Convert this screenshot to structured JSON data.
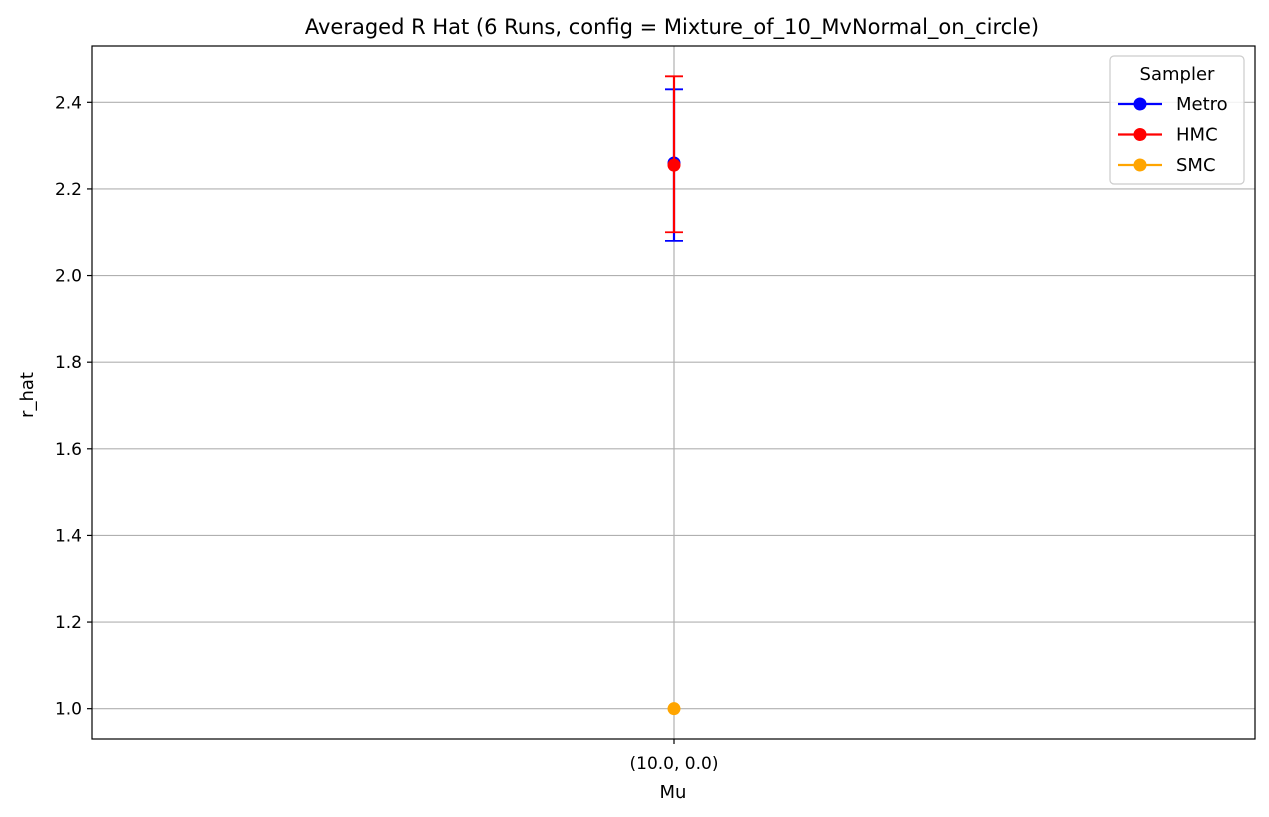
{
  "chart_data": {
    "type": "scatter",
    "title": "Averaged R Hat (6 Runs, config = Mixture_of_10_MvNormal_on_circle)",
    "xlabel": "Mu",
    "ylabel": "r_hat",
    "categories": [
      "(10.0, 0.0)"
    ],
    "ylim": [
      0.93,
      2.53
    ],
    "yticks": [
      1.0,
      1.2,
      1.4,
      1.6,
      1.8,
      2.0,
      2.2,
      2.4
    ],
    "ytick_labels": [
      "1.0",
      "1.2",
      "1.4",
      "1.6",
      "1.8",
      "2.0",
      "2.2",
      "2.4"
    ],
    "grid": true,
    "legend": {
      "title": "Sampler",
      "placement": "top-right"
    },
    "series": [
      {
        "name": "Metro",
        "color": "#0000ff",
        "values": [
          2.26
        ],
        "error_low": [
          2.08
        ],
        "error_high": [
          2.43
        ]
      },
      {
        "name": "HMC",
        "color": "#ff0000",
        "values": [
          2.255
        ],
        "error_low": [
          2.1
        ],
        "error_high": [
          2.46
        ]
      },
      {
        "name": "SMC",
        "color": "#ffa500",
        "values": [
          1.0
        ],
        "error_low": [
          1.0
        ],
        "error_high": [
          1.0
        ]
      }
    ]
  }
}
